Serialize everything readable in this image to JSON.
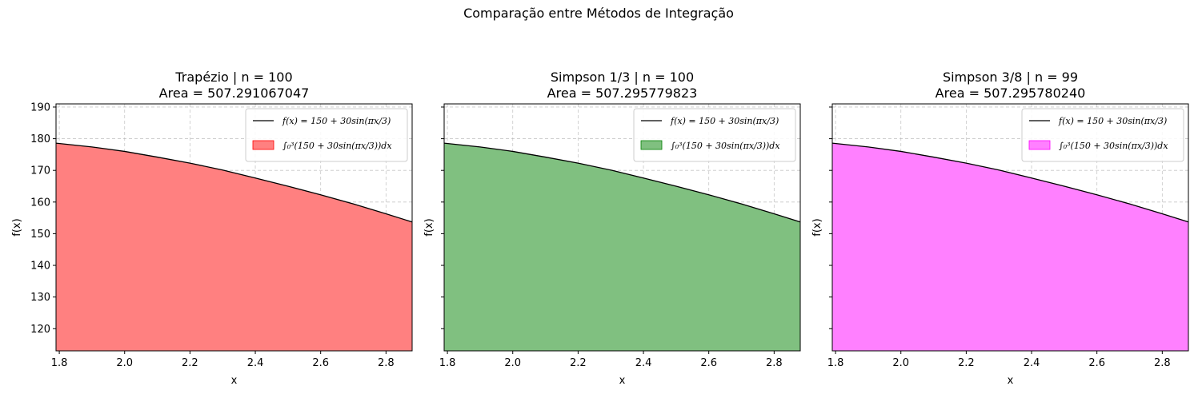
{
  "figure_title": "Comparação entre Métodos de Integração",
  "chart_data": [
    {
      "type": "area",
      "title_line1": "Trapézio | n = 100",
      "title_line2": "Area = 507.291067047",
      "xlabel": "x",
      "ylabel": "f(x)",
      "xlim": [
        1.79,
        2.88
      ],
      "ylim": [
        113,
        191
      ],
      "xticks": [
        "1.8",
        "2.0",
        "2.2",
        "2.4",
        "2.6",
        "2.8"
      ],
      "yticks": [
        "120",
        "130",
        "140",
        "150",
        "160",
        "170",
        "180",
        "190"
      ],
      "fill_color": "#ff8080",
      "fill_edge": "#ff0000",
      "grid": true,
      "legend_position": "upper right",
      "legend_line": "f(x) = 150 + 30sin(πx/3)",
      "legend_fill": "∫₀³(150 + 30sin(πx/3))dx",
      "series": [
        {
          "name": "f(x) = 150 + 30sin(πx/3)",
          "x": [
            1.79,
            1.9,
            2.0,
            2.1,
            2.2,
            2.3,
            2.4,
            2.5,
            2.6,
            2.7,
            2.8,
            2.88
          ],
          "y": [
            178.6,
            177.4,
            176.0,
            174.2,
            172.3,
            170.1,
            167.6,
            165.0,
            162.3,
            159.4,
            156.3,
            153.7
          ]
        }
      ]
    },
    {
      "type": "area",
      "title_line1": "Simpson 1/3 | n = 100",
      "title_line2": "Area = 507.295779823",
      "xlabel": "x",
      "ylabel": "f(x)",
      "xlim": [
        1.79,
        2.88
      ],
      "ylim": [
        113,
        191
      ],
      "xticks": [
        "1.8",
        "2.0",
        "2.2",
        "2.4",
        "2.6",
        "2.8"
      ],
      "yticks": [
        "120",
        "130",
        "140",
        "150",
        "160",
        "170",
        "180",
        "190"
      ],
      "fill_color": "#80c080",
      "fill_edge": "#008000",
      "grid": true,
      "legend_position": "upper right",
      "legend_line": "f(x) = 150 + 30sin(πx/3)",
      "legend_fill": "∫₀³(150 + 30sin(πx/3))dx",
      "series": [
        {
          "name": "f(x) = 150 + 30sin(πx/3)",
          "x": [
            1.79,
            1.9,
            2.0,
            2.1,
            2.2,
            2.3,
            2.4,
            2.5,
            2.6,
            2.7,
            2.8,
            2.88
          ],
          "y": [
            178.6,
            177.4,
            176.0,
            174.2,
            172.3,
            170.1,
            167.6,
            165.0,
            162.3,
            159.4,
            156.3,
            153.7
          ]
        }
      ]
    },
    {
      "type": "area",
      "title_line1": "Simpson 3/8 | n = 99",
      "title_line2": "Area = 507.295780240",
      "xlabel": "x",
      "ylabel": "f(x)",
      "xlim": [
        1.79,
        2.88
      ],
      "ylim": [
        113,
        191
      ],
      "xticks": [
        "1.8",
        "2.0",
        "2.2",
        "2.4",
        "2.6",
        "2.8"
      ],
      "yticks": [
        "120",
        "130",
        "140",
        "150",
        "160",
        "170",
        "180",
        "190"
      ],
      "fill_color": "#ff80ff",
      "fill_edge": "#ff00ff",
      "grid": true,
      "legend_position": "upper right",
      "legend_line": "f(x) = 150 + 30sin(πx/3)",
      "legend_fill": "∫₀³(150 + 30sin(πx/3))dx",
      "series": [
        {
          "name": "f(x) = 150 + 30sin(πx/3)",
          "x": [
            1.79,
            1.9,
            2.0,
            2.1,
            2.2,
            2.3,
            2.4,
            2.5,
            2.6,
            2.7,
            2.8,
            2.88
          ],
          "y": [
            178.6,
            177.4,
            176.0,
            174.2,
            172.3,
            170.1,
            167.6,
            165.0,
            162.3,
            159.4,
            156.3,
            153.7
          ]
        }
      ]
    }
  ]
}
